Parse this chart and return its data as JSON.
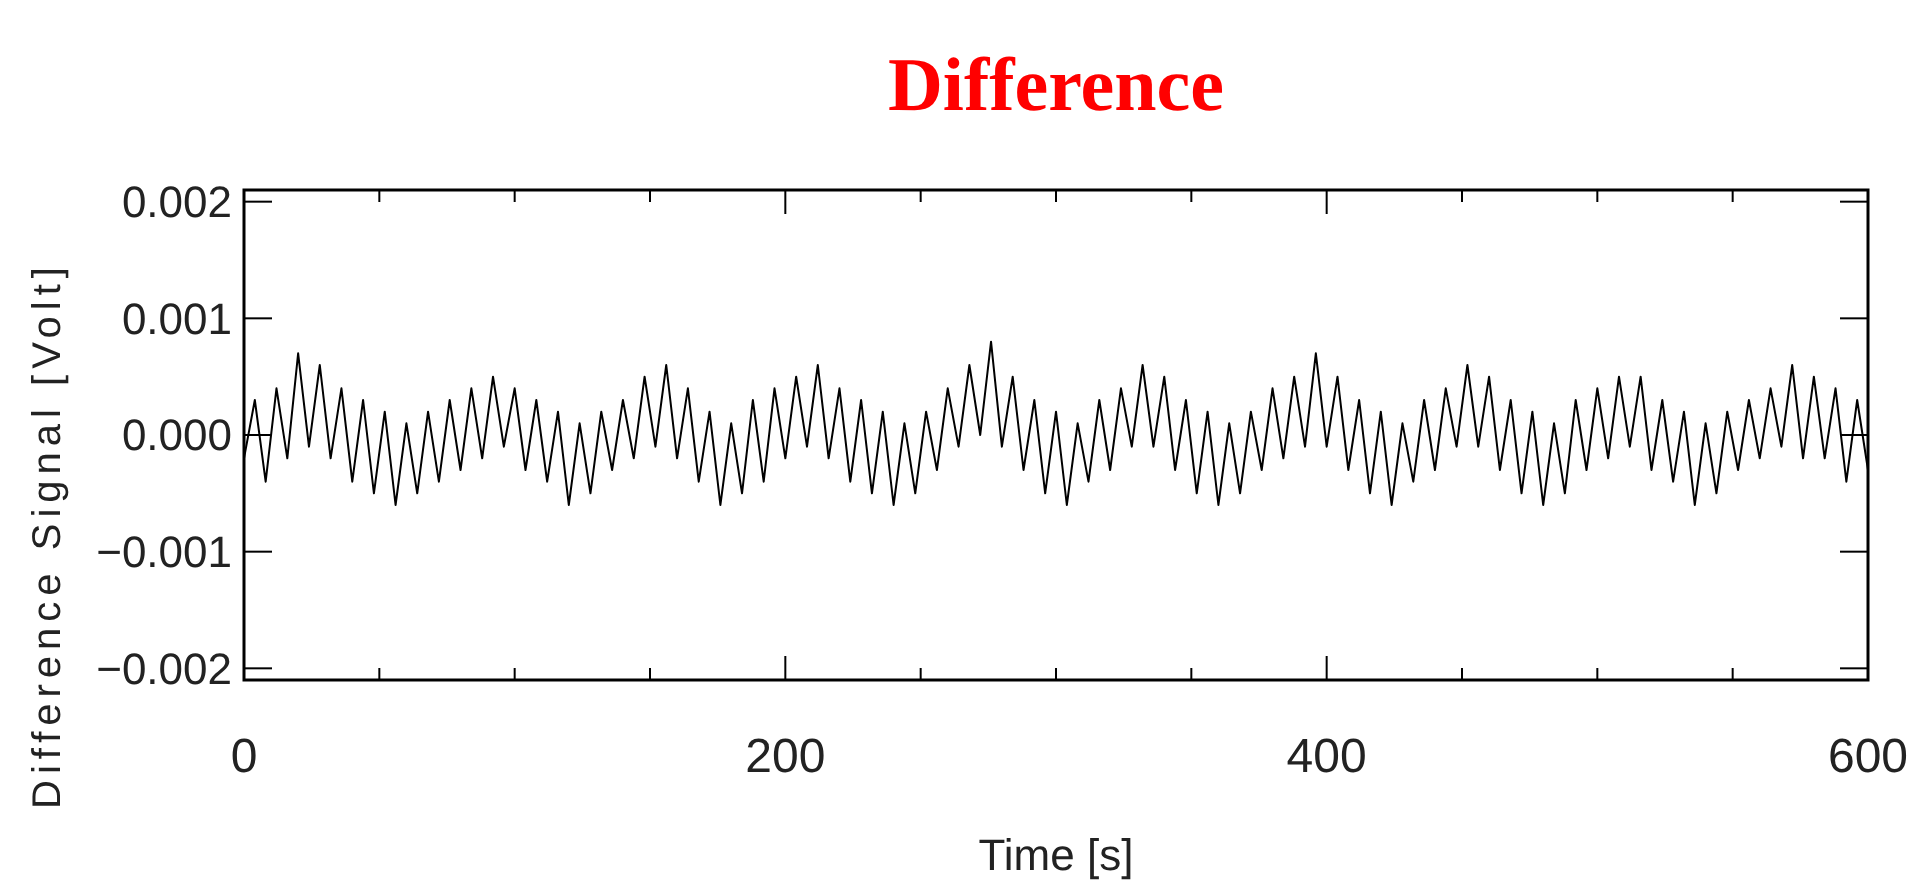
{
  "chart_data": {
    "type": "line",
    "title": "Difference",
    "xlabel": "Time [s]",
    "ylabel": "Difference Signal  [Volt]",
    "xlim": [
      0,
      600
    ],
    "xticks": [
      0,
      {
        "value": 50,
        "label": null
      },
      {
        "value": 100,
        "label": null
      },
      {
        "value": 150,
        "label": null
      },
      200,
      {
        "value": 250,
        "label": null
      },
      {
        "value": 300,
        "label": null
      },
      {
        "value": 350,
        "label": null
      },
      400,
      {
        "value": 450,
        "label": null
      },
      {
        "value": 500,
        "label": null
      },
      {
        "value": 550,
        "label": null
      },
      600
    ],
    "ylim": [
      -0.0021,
      0.0021
    ],
    "yticks": [
      {
        "value": -0.002,
        "label": "−0.002"
      },
      {
        "value": -0.001,
        "label": "−0.001"
      },
      {
        "value": 0,
        "label": "0.000"
      },
      {
        "value": 0.001,
        "label": "0.001"
      },
      {
        "value": 0.002,
        "label": "0.002"
      }
    ],
    "grid": false,
    "marker": "none",
    "line_style": "solid",
    "series": [
      {
        "color": "#000000",
        "x": [
          0,
          4,
          8,
          12,
          16,
          20,
          24,
          28,
          32,
          36,
          40,
          44,
          48,
          52,
          56,
          60,
          64,
          68,
          72,
          76,
          80,
          84,
          88,
          92,
          96,
          100,
          104,
          108,
          112,
          116,
          120,
          124,
          128,
          132,
          136,
          140,
          144,
          148,
          152,
          156,
          160,
          164,
          168,
          172,
          176,
          180,
          184,
          188,
          192,
          196,
          200,
          204,
          208,
          212,
          216,
          220,
          224,
          228,
          232,
          236,
          240,
          244,
          248,
          252,
          256,
          260,
          264,
          268,
          272,
          276,
          280,
          284,
          288,
          292,
          296,
          300,
          304,
          308,
          312,
          316,
          320,
          324,
          328,
          332,
          336,
          340,
          344,
          348,
          352,
          356,
          360,
          364,
          368,
          372,
          376,
          380,
          384,
          388,
          392,
          396,
          400,
          404,
          408,
          412,
          416,
          420,
          424,
          428,
          432,
          436,
          440,
          444,
          448,
          452,
          456,
          460,
          464,
          468,
          472,
          476,
          480,
          484,
          488,
          492,
          496,
          500,
          504,
          508,
          512,
          516,
          520,
          524,
          528,
          532,
          536,
          540,
          544,
          548,
          552,
          556,
          560,
          564,
          568,
          572,
          576,
          580,
          584,
          588,
          592,
          596,
          600
        ],
        "values": [
          -0.0002,
          0.0003,
          -0.0004,
          0.0004,
          -0.0002,
          0.0007,
          -0.0001,
          0.0006,
          -0.0002,
          0.0004,
          -0.0004,
          0.0003,
          -0.0005,
          0.0002,
          -0.0006,
          0.0001,
          -0.0005,
          0.0002,
          -0.0004,
          0.0003,
          -0.0003,
          0.0004,
          -0.0002,
          0.0005,
          -0.0001,
          0.0004,
          -0.0003,
          0.0003,
          -0.0004,
          0.0002,
          -0.0006,
          0.0001,
          -0.0005,
          0.0002,
          -0.0003,
          0.0003,
          -0.0002,
          0.0005,
          -0.0001,
          0.0006,
          -0.0002,
          0.0004,
          -0.0004,
          0.0002,
          -0.0006,
          0.0001,
          -0.0005,
          0.0003,
          -0.0004,
          0.0004,
          -0.0002,
          0.0005,
          -0.0001,
          0.0006,
          -0.0002,
          0.0004,
          -0.0004,
          0.0003,
          -0.0005,
          0.0002,
          -0.0006,
          0.0001,
          -0.0005,
          0.0002,
          -0.0003,
          0.0004,
          -0.0001,
          0.0006,
          0.0,
          0.0008,
          -0.0001,
          0.0005,
          -0.0003,
          0.0003,
          -0.0005,
          0.0002,
          -0.0006,
          0.0001,
          -0.0004,
          0.0003,
          -0.0003,
          0.0004,
          -0.0001,
          0.0006,
          -0.0001,
          0.0005,
          -0.0003,
          0.0003,
          -0.0005,
          0.0002,
          -0.0006,
          0.0001,
          -0.0005,
          0.0002,
          -0.0003,
          0.0004,
          -0.0002,
          0.0005,
          -0.0001,
          0.0007,
          -0.0001,
          0.0005,
          -0.0003,
          0.0003,
          -0.0005,
          0.0002,
          -0.0006,
          0.0001,
          -0.0004,
          0.0003,
          -0.0003,
          0.0004,
          -0.0001,
          0.0006,
          -0.0001,
          0.0005,
          -0.0003,
          0.0003,
          -0.0005,
          0.0002,
          -0.0006,
          0.0001,
          -0.0005,
          0.0003,
          -0.0003,
          0.0004,
          -0.0002,
          0.0005,
          -0.0001,
          0.0005,
          -0.0003,
          0.0003,
          -0.0004,
          0.0002,
          -0.0006,
          0.0001,
          -0.0005,
          0.0002,
          -0.0003,
          0.0003,
          -0.0002,
          0.0004,
          -0.0001,
          0.0006,
          -0.0002,
          0.0005,
          -0.0002,
          0.0004,
          -0.0004,
          0.0003,
          -0.0003
        ]
      }
    ]
  }
}
